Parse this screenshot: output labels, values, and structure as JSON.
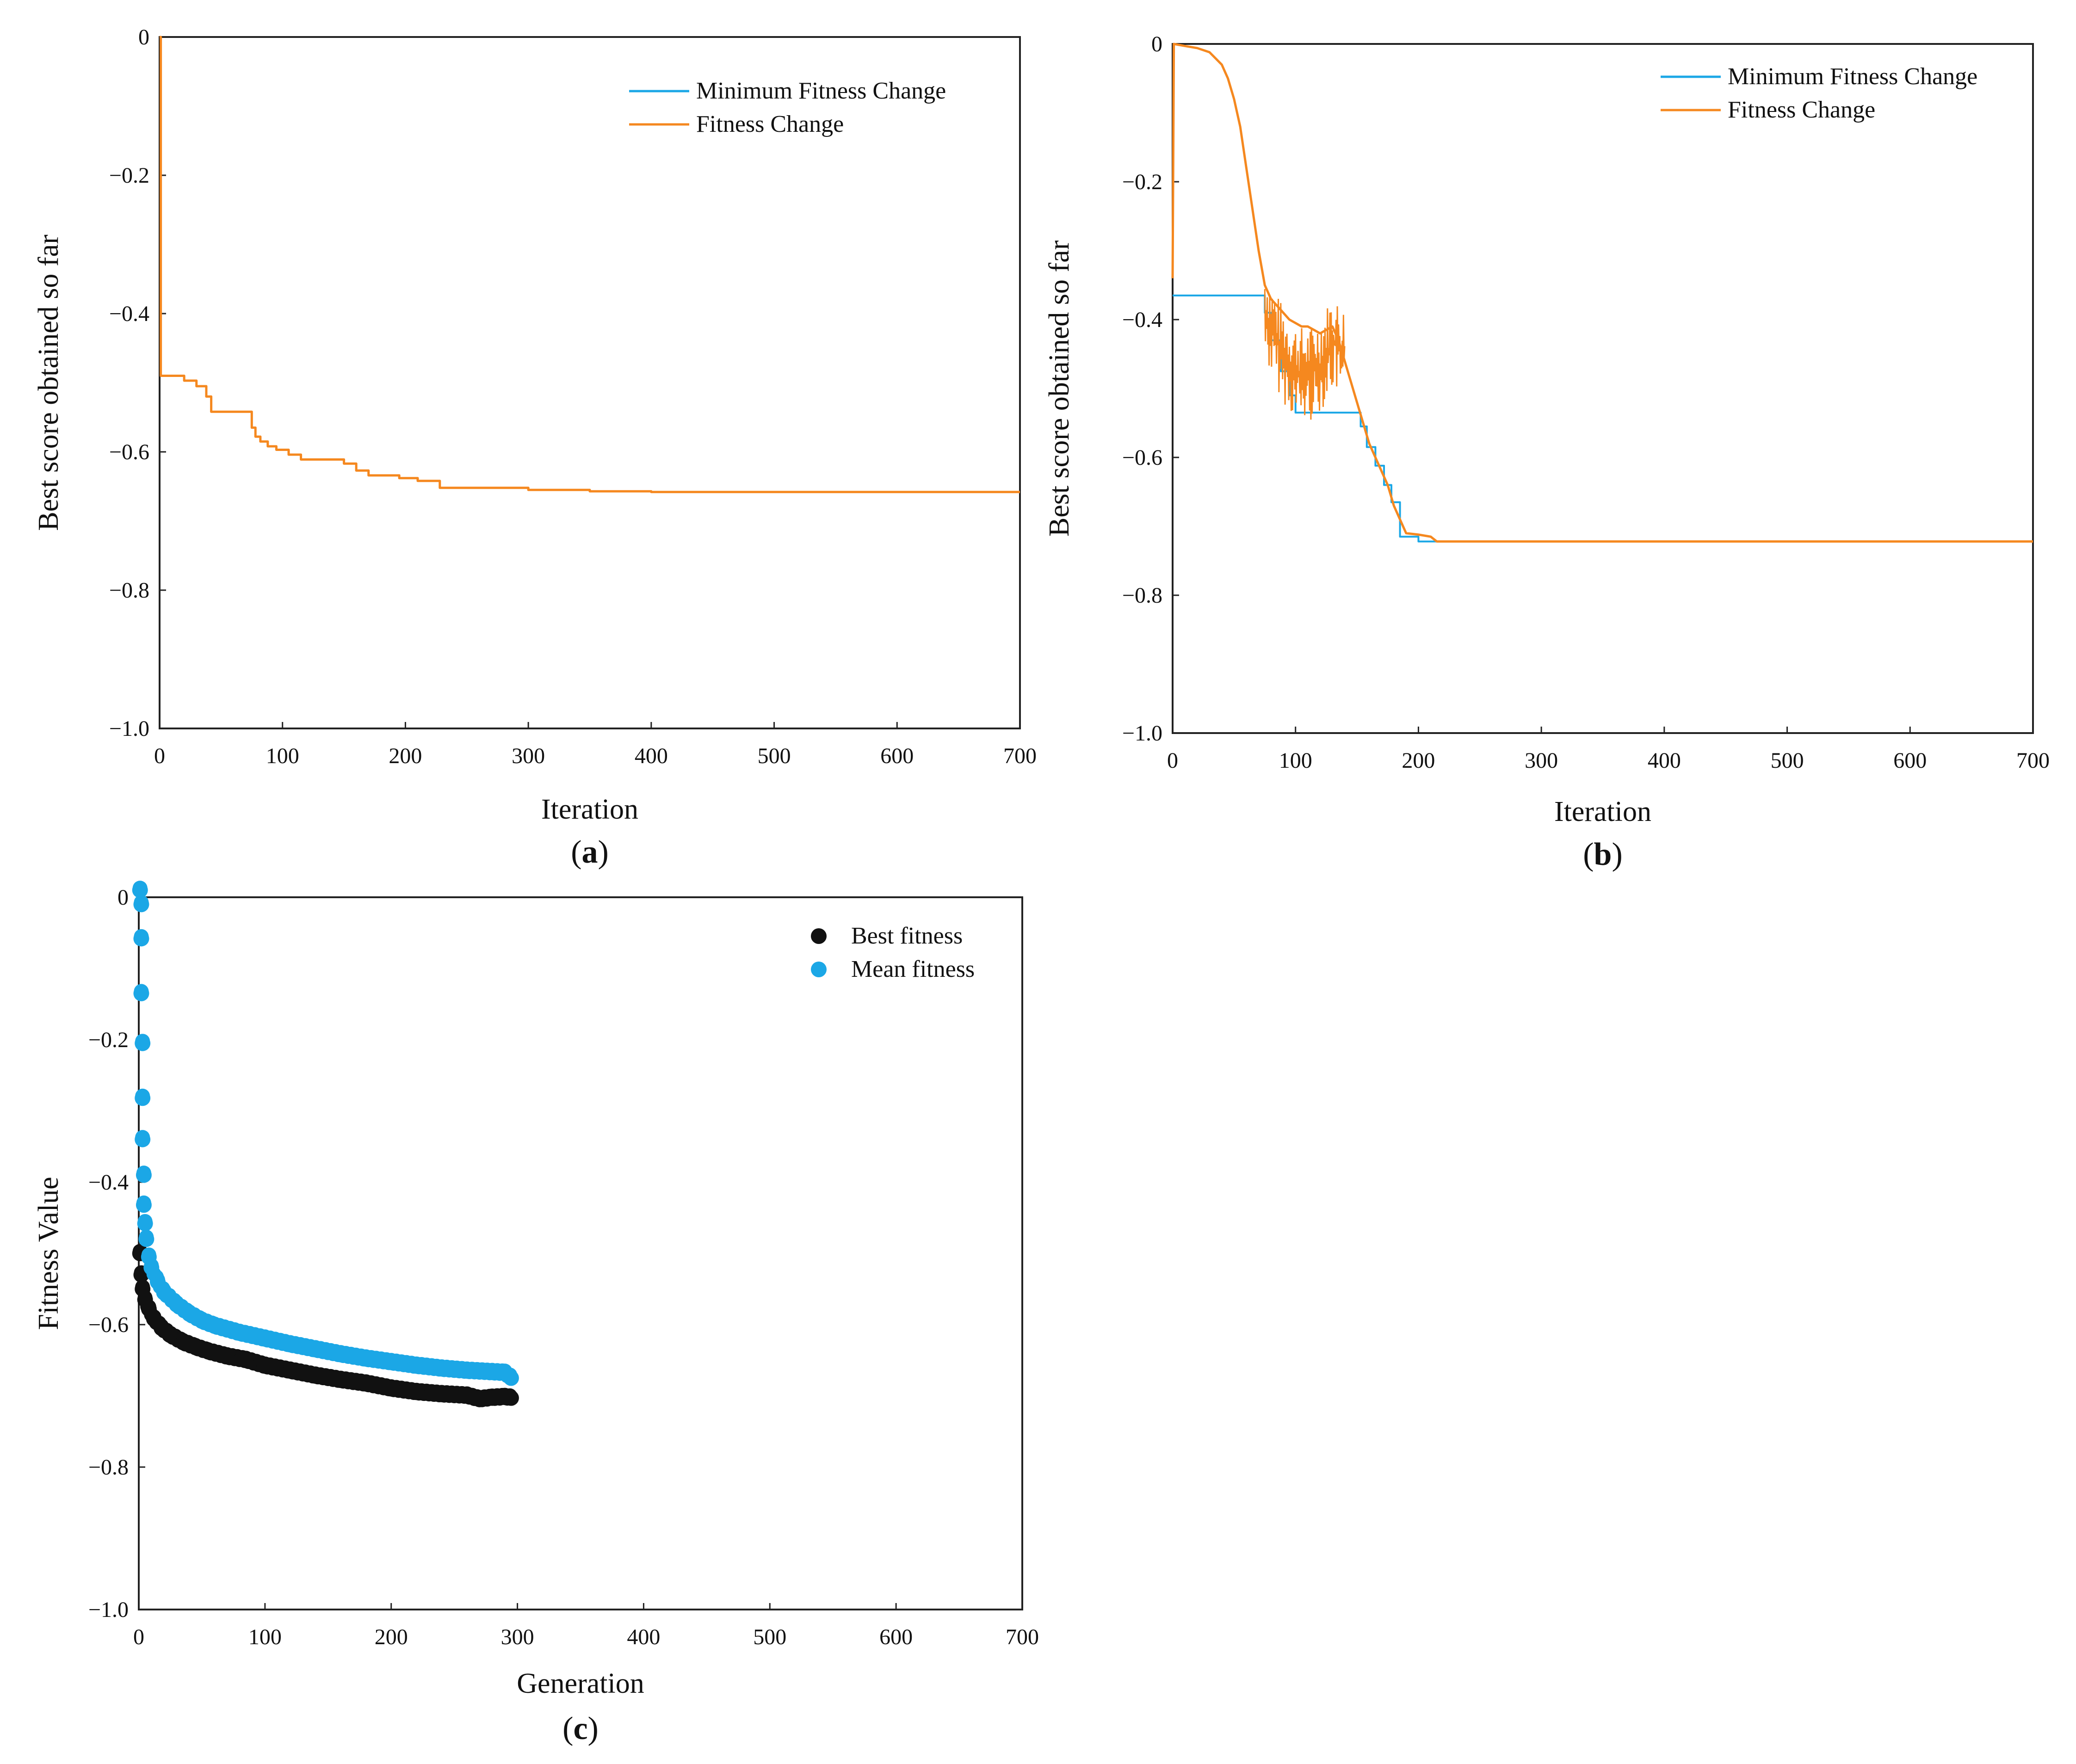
{
  "colors": {
    "blue": "#1ba7e6",
    "orange": "#f5881f",
    "black": "#111111",
    "axis": "#222222"
  },
  "chart_data": [
    {
      "id": "a",
      "type": "line",
      "caption": {
        "open": "(",
        "letter": "a",
        "close": ")"
      },
      "xlabel": "Iteration",
      "ylabel": "Best score obtained so far",
      "xlim": [
        0,
        700
      ],
      "ylim": [
        -1.0,
        0
      ],
      "xticks": [
        0,
        100,
        200,
        300,
        400,
        500,
        600,
        700
      ],
      "xtick_labels": [
        "0",
        "100",
        "200",
        "300",
        "400",
        "500",
        "600",
        "700"
      ],
      "yticks": [
        0,
        -0.2,
        -0.4,
        -0.6,
        -0.8,
        -1.0
      ],
      "ytick_labels": [
        "0",
        "−0.2",
        "−0.4",
        "−0.6",
        "−0.8",
        "−1.0"
      ],
      "legend_position": "top-right",
      "series": [
        {
          "name": "Minimum Fitness Change",
          "color": "#1ba7e6",
          "step": true,
          "points": [
            [
              0,
              0
            ],
            [
              1,
              -0.49
            ],
            [
              20,
              -0.497
            ],
            [
              30,
              -0.505
            ],
            [
              38,
              -0.52
            ],
            [
              42,
              -0.542
            ],
            [
              75,
              -0.565
            ],
            [
              78,
              -0.578
            ],
            [
              82,
              -0.585
            ],
            [
              88,
              -0.592
            ],
            [
              95,
              -0.597
            ],
            [
              105,
              -0.604
            ],
            [
              115,
              -0.611
            ],
            [
              150,
              -0.617
            ],
            [
              160,
              -0.627
            ],
            [
              170,
              -0.634
            ],
            [
              195,
              -0.638
            ],
            [
              210,
              -0.642
            ],
            [
              228,
              -0.652
            ],
            [
              300,
              -0.655
            ],
            [
              350,
              -0.657
            ],
            [
              400,
              -0.658
            ],
            [
              700,
              -0.658
            ]
          ]
        },
        {
          "name": "Fitness Change",
          "color": "#f5881f",
          "step": true,
          "points": [
            [
              0,
              0
            ],
            [
              1,
              -0.49
            ],
            [
              20,
              -0.497
            ],
            [
              30,
              -0.505
            ],
            [
              38,
              -0.52
            ],
            [
              42,
              -0.542
            ],
            [
              75,
              -0.565
            ],
            [
              78,
              -0.578
            ],
            [
              82,
              -0.585
            ],
            [
              88,
              -0.592
            ],
            [
              95,
              -0.597
            ],
            [
              105,
              -0.604
            ],
            [
              115,
              -0.611
            ],
            [
              150,
              -0.617
            ],
            [
              160,
              -0.627
            ],
            [
              170,
              -0.634
            ],
            [
              195,
              -0.638
            ],
            [
              210,
              -0.642
            ],
            [
              228,
              -0.652
            ],
            [
              300,
              -0.655
            ],
            [
              350,
              -0.657
            ],
            [
              400,
              -0.658
            ],
            [
              700,
              -0.658
            ]
          ]
        }
      ]
    },
    {
      "id": "b",
      "type": "line",
      "caption": {
        "open": "(",
        "letter": "b",
        "close": ")"
      },
      "xlabel": "Iteration",
      "ylabel": "Best score obtained so far",
      "xlim": [
        0,
        700
      ],
      "ylim": [
        -1.0,
        0
      ],
      "xticks": [
        0,
        100,
        200,
        300,
        400,
        500,
        600,
        700
      ],
      "xtick_labels": [
        "0",
        "100",
        "200",
        "300",
        "400",
        "500",
        "600",
        "700"
      ],
      "yticks": [
        0,
        -0.2,
        -0.4,
        -0.6,
        -0.8,
        -1.0
      ],
      "ytick_labels": [
        "0",
        "−0.2",
        "−0.4",
        "−0.6",
        "−0.8",
        "−1.0"
      ],
      "legend_position": "top-right",
      "series": [
        {
          "name": "Minimum Fitness Change",
          "color": "#1ba7e6",
          "step": true,
          "points": [
            [
              0,
              -0.365
            ],
            [
              70,
              -0.365
            ],
            [
              75,
              -0.39
            ],
            [
              80,
              -0.43
            ],
            [
              88,
              -0.475
            ],
            [
              95,
              -0.51
            ],
            [
              100,
              -0.535
            ],
            [
              150,
              -0.535
            ],
            [
              153,
              -0.555
            ],
            [
              158,
              -0.585
            ],
            [
              165,
              -0.612
            ],
            [
              172,
              -0.64
            ],
            [
              178,
              -0.665
            ],
            [
              185,
              -0.715
            ],
            [
              200,
              -0.722
            ],
            [
              700,
              -0.722
            ]
          ]
        },
        {
          "name": "Fitness Change",
          "color": "#f5881f",
          "step": false,
          "points": [
            [
              0,
              -0.34
            ],
            [
              1,
              0
            ],
            [
              10,
              -0.003
            ],
            [
              20,
              -0.006
            ],
            [
              30,
              -0.012
            ],
            [
              40,
              -0.03
            ],
            [
              45,
              -0.05
            ],
            [
              50,
              -0.08
            ],
            [
              55,
              -0.12
            ],
            [
              60,
              -0.18
            ],
            [
              65,
              -0.24
            ],
            [
              70,
              -0.3
            ],
            [
              75,
              -0.35
            ],
            [
              80,
              -0.37
            ],
            [
              85,
              -0.38
            ],
            [
              90,
              -0.39
            ],
            [
              95,
              -0.4
            ],
            [
              100,
              -0.405
            ],
            [
              105,
              -0.41
            ],
            [
              110,
              -0.41
            ],
            [
              115,
              -0.415
            ],
            [
              120,
              -0.42
            ],
            [
              125,
              -0.415
            ],
            [
              130,
              -0.41
            ],
            [
              135,
              -0.43
            ],
            [
              140,
              -0.46
            ],
            [
              145,
              -0.49
            ],
            [
              150,
              -0.52
            ],
            [
              155,
              -0.55
            ],
            [
              160,
              -0.58
            ],
            [
              165,
              -0.6
            ],
            [
              170,
              -0.62
            ],
            [
              175,
              -0.64
            ],
            [
              180,
              -0.67
            ],
            [
              185,
              -0.69
            ],
            [
              190,
              -0.71
            ],
            [
              200,
              -0.712
            ],
            [
              210,
              -0.715
            ],
            [
              215,
              -0.722
            ],
            [
              700,
              -0.722
            ]
          ]
        }
      ]
    },
    {
      "id": "c",
      "type": "scatter",
      "caption": {
        "open": "(",
        "letter": "c",
        "close": ")"
      },
      "xlabel": "Generation",
      "ylabel": "Fitness Value",
      "xlim": [
        0,
        700
      ],
      "ylim": [
        -1.0,
        0
      ],
      "xticks": [
        0,
        100,
        200,
        300,
        400,
        500,
        600,
        700
      ],
      "xtick_labels": [
        "0",
        "100",
        "200",
        "300",
        "400",
        "500",
        "600",
        "700"
      ],
      "yticks": [
        0,
        -0.2,
        -0.4,
        -0.6,
        -0.8,
        -1.0
      ],
      "ytick_labels": [
        "0",
        "−0.2",
        "−0.4",
        "−0.6",
        "−0.8",
        "−1.0"
      ],
      "legend_position": "top-right",
      "series": [
        {
          "name": "Best fitness",
          "color": "#111111",
          "points": [
            [
              1,
              -0.5
            ],
            [
              2,
              -0.53
            ],
            [
              3,
              -0.55
            ],
            [
              5,
              -0.565
            ],
            [
              8,
              -0.578
            ],
            [
              12,
              -0.592
            ],
            [
              18,
              -0.605
            ],
            [
              25,
              -0.615
            ],
            [
              35,
              -0.625
            ],
            [
              45,
              -0.632
            ],
            [
              55,
              -0.638
            ],
            [
              70,
              -0.645
            ],
            [
              85,
              -0.65
            ],
            [
              100,
              -0.658
            ],
            [
              120,
              -0.665
            ],
            [
              140,
              -0.672
            ],
            [
              160,
              -0.678
            ],
            [
              180,
              -0.683
            ],
            [
              200,
              -0.69
            ],
            [
              220,
              -0.695
            ],
            [
              240,
              -0.698
            ],
            [
              260,
              -0.7
            ],
            [
              270,
              -0.705
            ],
            [
              280,
              -0.703
            ],
            [
              290,
              -0.702
            ],
            [
              295,
              -0.703
            ]
          ]
        },
        {
          "name": "Mean fitness",
          "color": "#1ba7e6",
          "points": [
            [
              1,
              0.01
            ],
            [
              2,
              -0.01
            ],
            [
              2,
              -0.058
            ],
            [
              2,
              -0.135
            ],
            [
              3,
              -0.205
            ],
            [
              3,
              -0.282
            ],
            [
              3,
              -0.34
            ],
            [
              4,
              -0.39
            ],
            [
              4,
              -0.432
            ],
            [
              5,
              -0.458
            ],
            [
              6,
              -0.48
            ],
            [
              8,
              -0.505
            ],
            [
              10,
              -0.52
            ],
            [
              15,
              -0.54
            ],
            [
              20,
              -0.555
            ],
            [
              30,
              -0.572
            ],
            [
              40,
              -0.585
            ],
            [
              50,
              -0.595
            ],
            [
              60,
              -0.602
            ],
            [
              80,
              -0.612
            ],
            [
              100,
              -0.62
            ],
            [
              120,
              -0.628
            ],
            [
              140,
              -0.635
            ],
            [
              160,
              -0.642
            ],
            [
              180,
              -0.648
            ],
            [
              200,
              -0.653
            ],
            [
              220,
              -0.658
            ],
            [
              240,
              -0.662
            ],
            [
              260,
              -0.665
            ],
            [
              280,
              -0.667
            ],
            [
              290,
              -0.668
            ],
            [
              295,
              -0.675
            ]
          ]
        }
      ]
    }
  ]
}
